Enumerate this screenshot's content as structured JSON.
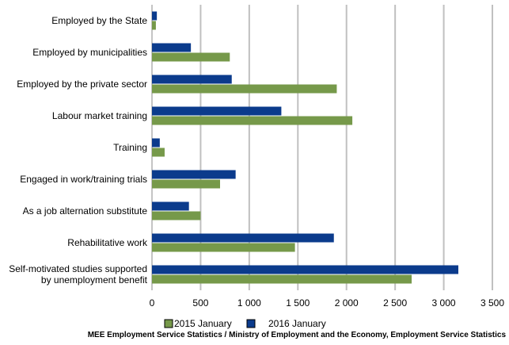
{
  "chart_data": {
    "type": "bar",
    "orientation": "horizontal",
    "categories": [
      [
        "Employed by the State"
      ],
      [
        "Employed by municipalities"
      ],
      [
        "Employed by the private sector"
      ],
      [
        "Labour market training"
      ],
      [
        "Training"
      ],
      [
        "Engaged in work/training trials"
      ],
      [
        "As a job alternation substitute"
      ],
      [
        "Rehabilitative work"
      ],
      [
        "Self-motivated studies supported",
        "by unemployment benefit"
      ]
    ],
    "series": [
      {
        "name": "2016 January",
        "color": "#0b3b8c",
        "values": [
          50,
          400,
          820,
          1330,
          80,
          860,
          380,
          1870,
          3150
        ]
      },
      {
        "name": "2015 January",
        "color": "#76994a",
        "values": [
          40,
          800,
          1900,
          2060,
          130,
          700,
          500,
          1470,
          2670
        ]
      }
    ],
    "xlim": [
      0,
      3500
    ],
    "xticks": [
      0,
      500,
      1000,
      1500,
      2000,
      2500,
      3000,
      3500
    ],
    "xtick_labels": [
      "0",
      "500",
      "1 000",
      "1 500",
      "2 000",
      "2 500",
      "3 000",
      "3 500"
    ],
    "grid": true,
    "legend": {
      "placement": "bottom",
      "entries": [
        {
          "label": "2015 January",
          "color": "#76994a"
        },
        {
          "label": "2016 January",
          "color": "#0b3b8c"
        }
      ]
    },
    "source": "MEE Employment Service Statistics / Ministry of Employment and the Economy, Employment Service Statistics"
  }
}
